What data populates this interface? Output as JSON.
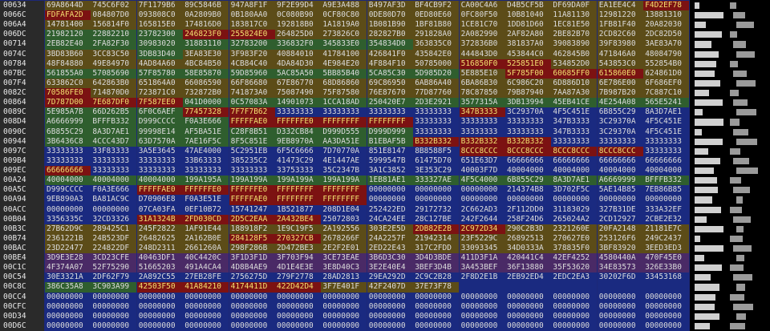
{
  "rows": [
    {
      "address": "00634",
      "words": [
        "69A8644D",
        "745C6F02",
        "7F1179B6",
        "89C5846B",
        "947A8F1F",
        "9F2E99D4",
        "A9E3A488",
        "B497AF3D",
        "BF4CB9F2",
        "CA00C4A6",
        "D4B5CF5B",
        "DF69DA0F",
        "EA1EE4C4",
        "F4D2EF78"
      ],
      "shade": "OOOOOOOOOOOOOR"
    },
    {
      "address": "0066C",
      "words": [
        "FDFAFA2D",
        "084807D0",
        "093808C0",
        "0A2809B0",
        "0B180AA0",
        "0C080B90",
        "0CF80C80",
        "0DE80D70",
        "0ED80E60",
        "0FC80F50",
        "10B81040",
        "11A81130",
        "12981220",
        "13881310"
      ],
      "shade": "ROOOOOOOOOOOOO"
    },
    {
      "address": "006A4",
      "words": [
        "14781400",
        "156814F0",
        "165815E0",
        "174816D0",
        "183817C0",
        "192818B0",
        "1A1819A0",
        "1B081B90",
        "1BF81B80",
        "1CE81C70",
        "1DD81D60",
        "1EC81E50",
        "1FB81F40",
        "20A82030"
      ],
      "shade": "OOOOOOOOOOOOOO"
    },
    {
      "address": "006DC",
      "words": [
        "21982120",
        "22882210",
        "23782300",
        "246823F0",
        "255824E0",
        "264825D0",
        "273826C0",
        "282827B0",
        "291828A0",
        "2A082990",
        "2AF82A80",
        "2BE82B70",
        "2CD82C60",
        "2DC82D50"
      ],
      "shade": "GGGRROOOOOOOOO"
    },
    {
      "address": "00714",
      "words": [
        "2EB82E40",
        "2FA82F30",
        "30983020",
        "31883110",
        "32783200",
        "336832F0",
        "345833E0",
        "354834D0",
        "363835C0",
        "372836B0",
        "381837A0",
        "39083890",
        "39F83980",
        "3AE83A70"
      ],
      "shade": "GGGGGGGGOOOOOO"
    },
    {
      "address": "0074C",
      "words": [
        "3BD83B60",
        "3CC83C50",
        "3DB83D40",
        "3EA83E30",
        "3F983F20",
        "40884010",
        "41784100",
        "426841F0",
        "435842E0",
        "444843D0",
        "453844C0",
        "462845B0",
        "471846A0",
        "48084790"
      ],
      "shade": "OOGOOOOOOOOOOO"
    },
    {
      "address": "00784",
      "words": [
        "48F84880",
        "49E84970",
        "4AD84A60",
        "4BC84B50",
        "4CB84C40",
        "4DA84D30",
        "4E984E20",
        "4F884F10",
        "50785000",
        "516850F0",
        "525851E0",
        "534852D0",
        "543853C0",
        "552854B0"
      ],
      "shade": "OOOOOOOOORROOO"
    },
    {
      "address": "007BC",
      "words": [
        "561855A0",
        "57085690",
        "57F85780",
        "58E85870",
        "59D85960",
        "5AC85A50",
        "5BB85B40",
        "5CA85C30",
        "5D985D20",
        "5E885E10",
        "5F785F00",
        "60685FF0",
        "615860E0",
        "624861D0"
      ],
      "shade": "GGGGGGGGGORRRO"
    },
    {
      "address": "007F4",
      "words": [
        "633862C0",
        "642863B0",
        "651864A0",
        "66086590",
        "66F86680",
        "67E86770",
        "68D86860",
        "69C86950",
        "6AB86A40",
        "6BA86B30",
        "6C986C20",
        "6D886D10",
        "6E786E00",
        "6F686EF0"
      ],
      "shade": "OOOOOOOOOOOOOO"
    },
    {
      "address": "0082C",
      "words": [
        "70586FE0",
        "714870D0",
        "723871C0",
        "732872B0",
        "741873A0",
        "75087490",
        "75F87580",
        "76E87670",
        "77D87760",
        "78C87850",
        "79B87940",
        "7AA87A30",
        "7B987B20",
        "7C887C10"
      ],
      "shade": "ROOOOOOOOOOOOO"
    },
    {
      "address": "00864",
      "words": [
        "7D787D00",
        "7E687DF0",
        "7F587EE0",
        "041D0000",
        "0C57083A",
        "14901073",
        "1CCA18AD",
        "250420E7",
        "2D3E2921",
        "3577315A",
        "3DB13994",
        "45EB41CE",
        "4E254A08",
        "565E5241"
      ],
      "shade": "RRRGGGGGGGGGGG"
    },
    {
      "address": "0089C",
      "words": [
        "5E985A7B",
        "66D262B5",
        "6F0C6AEF",
        "77457328",
        "7F7F7B62",
        "33333333",
        "33333333",
        "33333333",
        "33333333",
        "347B3333",
        "3C29370A",
        "4F5C451E",
        "6B855C29",
        "8A3D7AE1"
      ],
      "shade": "GGGRRBBBBRBBBB"
    },
    {
      "address": "008D4",
      "words": [
        "A6666999",
        "BFFFB332",
        "D999CCCC",
        "F0A3E666",
        "FFFFFAE0",
        "FFFFFFE0",
        "FFFFFFFF",
        "FFFFFFFF",
        "33333333",
        "33333333",
        "33333333",
        "347B3333",
        "3C29370A",
        "4F5C451E"
      ],
      "shade": "GGGGRRRRBBBBBB"
    },
    {
      "address": "0090C",
      "words": [
        "6B855C29",
        "8A3D7AE1",
        "99998E14",
        "AF5BA51E",
        "C28F8B51",
        "D332CB84",
        "D999D555",
        "D999D999",
        "33333333",
        "33333333",
        "33333333",
        "347B3333",
        "3C29370A",
        "4F5C451E"
      ],
      "shade": "GGGGGGGGBBBBBB"
    },
    {
      "address": "00944",
      "words": [
        "3B6436C8",
        "4CCC43D7",
        "63D7570A",
        "7AE16F5C",
        "8F5C851E",
        "9EB8970A",
        "AA3DA51E",
        "B1EBAF5B",
        "B332B332",
        "B332B332",
        "B332B332",
        "33333333",
        "33333333",
        "33333333"
      ],
      "shade": "GGGGGGGGRRRBBB"
    },
    {
      "address": "0097C",
      "words": [
        "33333333",
        "33F83333",
        "3A5E3645",
        "47AE4000",
        "5C2951EB",
        "6F5C6666",
        "7D70770A",
        "851E8147",
        "8B8588F5",
        "8CCC8CCC",
        "8CCC8CCC",
        "8CCC8CCC",
        "8CCC8CCC",
        "33333333"
      ],
      "shade": "BBBBBBBBBRRRRB"
    },
    {
      "address": "009B4",
      "words": [
        "33333333",
        "33333333",
        "33333333",
        "33B63333",
        "385235C2",
        "41473C29",
        "4E1447AE",
        "5999547B",
        "61475D70",
        "651E63D7",
        "66666666",
        "66666666",
        "66666666",
        "66666666"
      ],
      "shade": "BBBBBBBBBBBBBB"
    },
    {
      "address": "009EC",
      "words": [
        "66666666",
        "33333333",
        "33333333",
        "33333333",
        "33333333",
        "33753333",
        "35C2347B",
        "3A1C3852",
        "3E353C29",
        "40003F7D",
        "40004000",
        "40004000",
        "40004000",
        "40004000"
      ],
      "shade": "RBBBBBBBBBBBBB"
    },
    {
      "address": "00A24",
      "words": [
        "40004000",
        "40004000",
        "40004000",
        "199A195A",
        "199A199A",
        "199A199A",
        "199A199A",
        "1EB81AE1",
        "333327AE",
        "4F5C4000",
        "6B855C29",
        "8A3D7AE1",
        "A6669999",
        "BFFFB332"
      ],
      "shade": "GGGGGGGGGGGGGG"
    },
    {
      "address": "00A5C",
      "words": [
        "D999CCCC",
        "F0A3E666",
        "FFFFFAE0",
        "FFFFFFE0",
        "FFFFFFE0",
        "FFFFFFFF",
        "FFFFFFFF",
        "00000000",
        "00000000",
        "00000000",
        "214374B8",
        "3D702F5C",
        "5AE14B85",
        "7EB86B85"
      ],
      "shade": "BBRRRRRBBBBBBB"
    },
    {
      "address": "00A94",
      "words": [
        "9EB890A3",
        "BA81AC9C",
        "D70906E8",
        "F0A3E51E",
        "FFFFFAE0",
        "FFFFFFFF",
        "FFFFFFFF",
        "00000000",
        "00000000",
        "00000000",
        "00000000",
        "00000000",
        "00000000",
        "00000000"
      ],
      "shade": "BBBBRRRBBBBBBB"
    },
    {
      "address": "00ACC",
      "words": [
        "00000000",
        "00000000",
        "07CA03FA",
        "0EF10B72",
        "15741247",
        "1B521877",
        "208D1E04",
        "252422ED",
        "29172732",
        "2C662AD3",
        "2F112DD0",
        "31183029",
        "327B31DE",
        "333A32EF"
      ],
      "shade": "BBBBBBBBBBBBBB"
    },
    {
      "address": "00B04",
      "words": [
        "3356335C",
        "32CD3326",
        "31A1324B",
        "2FD030CD",
        "2D5C2EAA",
        "2A432BE4",
        "25072803",
        "24CA24EE",
        "28C127BE",
        "242F2644",
        "258F24D6",
        "265024A2",
        "2CD12927",
        "2CBE2E32"
      ],
      "shade": "BBRRRRBBBBBBBB"
    },
    {
      "address": "00B3C",
      "words": [
        "27B62D9C",
        "289425C1",
        "245F2822",
        "1AF91E44",
        "188918F2",
        "1E9C19F5",
        "2A192556",
        "303E2E5D",
        "2DB82E2B",
        "2C972D34",
        "290C2B3D",
        "2321260E",
        "20FA2148",
        "21181E7C"
      ],
      "shade": "OOOOOOOORROOOO"
    },
    {
      "address": "00B74",
      "words": [
        "2361221B",
        "24B523DF",
        "26482625",
        "2A162B0E",
        "284128F5",
        "270327CB",
        "2678266F",
        "24A2257F",
        "21942314",
        "23F5229C",
        "26892513",
        "270627E0",
        "253126F6",
        "249C2437"
      ],
      "shade": "OOOORROOOOOOOO"
    },
    {
      "address": "00BAC",
      "words": [
        "23D22477",
        "224822DF",
        "248D2311",
        "2661260A",
        "298F286B",
        "2D472BE3",
        "2E2F2E01",
        "2ED22E43",
        "317C2FDD",
        "33093345",
        "34D0333A",
        "378835F0",
        "3BF83920",
        "3EED3ED3"
      ],
      "shade": "OOOOOOOOOOOOOO"
    },
    {
      "address": "00BE4",
      "words": [
        "3D9E3E28",
        "3CD23CFE",
        "40463DF1",
        "40C4420C",
        "3F1D3F1D",
        "3F703F94",
        "3CE73EAE",
        "3B6D3C30",
        "3D4D3BDE",
        "411D3F1A",
        "420441C4",
        "42EF4252",
        "4580440A",
        "470F45E0"
      ],
      "shade": "PPPPPPPPPPPPPP"
    },
    {
      "address": "00C1C",
      "words": [
        "4F374A07",
        "52F75290",
        "51665203",
        "491A4CA4",
        "4D8B4AE9",
        "4D1E4E3E",
        "3E8D40C3",
        "3E2E40E4",
        "3BEF3D4B",
        "3A453BEF",
        "36F13880",
        "35F53620",
        "34E83573",
        "326E33B0"
      ],
      "shade": "PPPPPPPPPPPPPP"
    },
    {
      "address": "00C54",
      "words": [
        "30E3321A",
        "2DF62F79",
        "2A892C55",
        "27EB28FE",
        "2756275D",
        "279F2778",
        "28AD2813",
        "29EA292D",
        "2C9C2B28",
        "2F8D2E1B",
        "2EB92ED4",
        "2EDC2EA3",
        "30202F6D",
        "33453168"
      ],
      "shade": "BBBBBBBBBBBBBB"
    },
    {
      "address": "00C8C",
      "words": [
        "386C35A8",
        "3C903A99",
        "42503F50",
        "41A84210",
        "4174411D",
        "422D42D4",
        "3F7E401F",
        "42F2407D",
        "37E73F78"
      ],
      "shade": "GGRRRROOO"
    },
    {
      "address": "00CC4",
      "words": [
        "00000000",
        "00000000",
        "00000000",
        "00000000",
        "00000000",
        "00000000",
        "00000000",
        "00000000",
        "00000000",
        "00000000",
        "00000000",
        "00000000",
        "00000000",
        "00000000"
      ],
      "shade": "BBBBBBBBBBBBBB"
    },
    {
      "address": "00CFC",
      "words": [
        "00000000",
        "00000000",
        "00000000",
        "00000000",
        "00000000",
        "00000000",
        "00000000",
        "00000000",
        "00000000",
        "00000000",
        "00000000",
        "00000000",
        "00000000",
        "00000000"
      ],
      "shade": "BBBBBBBBBBBBBB"
    },
    {
      "address": "00D34",
      "words": [
        "00000000",
        "00000000",
        "00000000",
        "00000000",
        "00000000",
        "00000000",
        "00000000",
        "00000000",
        "00000000",
        "00000000",
        "00000000",
        "00000000",
        "00000000",
        "00000000"
      ],
      "shade": "BBBBBBBBBBBBBB"
    },
    {
      "address": "00D6C",
      "words": [
        "00000000",
        "00000000",
        "00000000",
        "00000000",
        "00000000",
        "00000000",
        "00000000",
        "00000000",
        "00000000",
        "00000000",
        "00000000",
        "00000000",
        "00000000",
        "00000000"
      ],
      "shade": "BBBBBBBBBBBBBB"
    }
  ]
}
